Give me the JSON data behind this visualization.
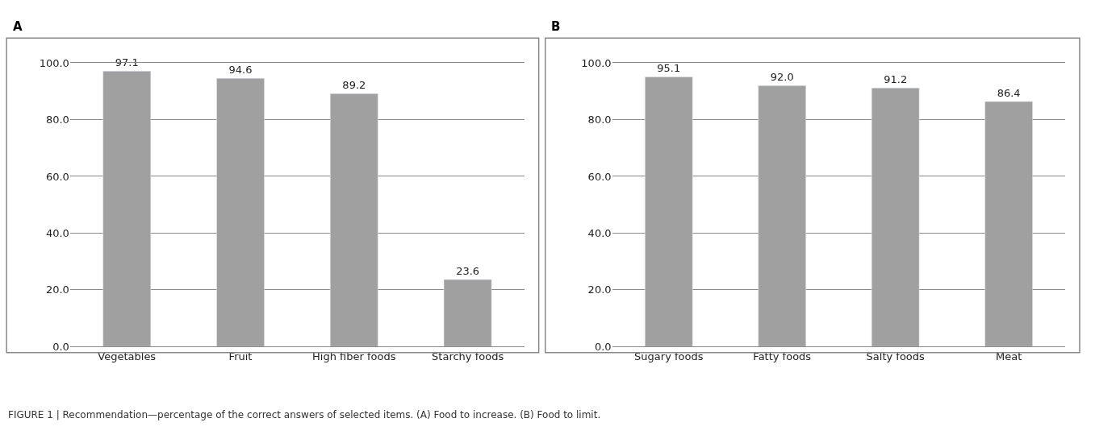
{
  "chart_data": [
    {
      "type": "bar",
      "title": "A",
      "categories": [
        "Vegetables",
        "Fruit",
        "High fiber foods",
        "Starchy foods"
      ],
      "values": [
        97.1,
        94.6,
        89.2,
        23.6
      ],
      "value_labels": [
        "97.1",
        "94.6",
        "89.2",
        "23.6"
      ],
      "color": "#a0a0a0",
      "ylim": [
        0,
        100
      ],
      "yticks": [
        {
          "value": 0,
          "label": "0.0"
        },
        {
          "value": 20,
          "label": "20.0"
        },
        {
          "value": 40,
          "label": "40.0"
        },
        {
          "value": 60,
          "label": "60.0"
        },
        {
          "value": 80,
          "label": "80.0"
        },
        {
          "value": 100,
          "label": "100.0"
        }
      ],
      "grid": "y",
      "annotations": [
        "FIGURE 1 | Recommendation—percentage of the correct answers of selected items. (A) Food to increase. (B) Food to limit."
      ]
    },
    {
      "type": "bar",
      "title": "B",
      "categories": [
        "Sugary foods",
        "Fatty foods",
        "Salty foods",
        "Meat"
      ],
      "values": [
        95.1,
        92.0,
        91.2,
        86.4
      ],
      "value_labels": [
        "95.1",
        "92.0",
        "91.2",
        "86.4"
      ],
      "color": "#a0a0a0",
      "ylim": [
        0,
        100
      ],
      "yticks": [
        {
          "value": 0,
          "label": "0.0"
        },
        {
          "value": 20,
          "label": "20.0"
        },
        {
          "value": 40,
          "label": "40.0"
        },
        {
          "value": 60,
          "label": "60.0"
        },
        {
          "value": 80,
          "label": "80.0"
        },
        {
          "value": 100,
          "label": "100.0"
        }
      ],
      "grid": "y"
    }
  ]
}
